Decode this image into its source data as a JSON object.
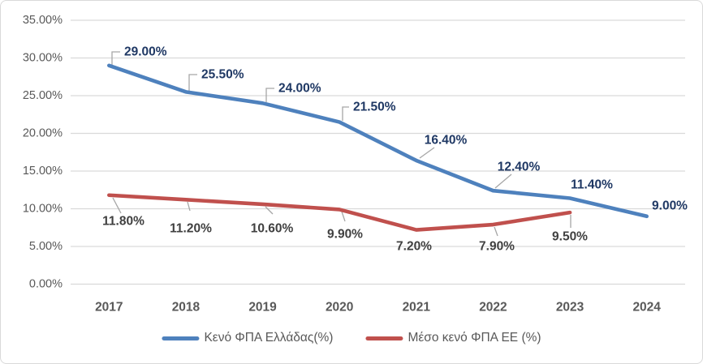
{
  "chart_data": {
    "type": "line",
    "title": "",
    "categories": [
      "2017",
      "2018",
      "2019",
      "2020",
      "2021",
      "2022",
      "2023",
      "2024"
    ],
    "series": [
      {
        "name": "Κενό ΦΠΑ Ελλάδας(%)",
        "color": "#4E81BD",
        "label_color": "#1F3864",
        "values": [
          29.0,
          25.5,
          24.0,
          21.5,
          16.4,
          12.4,
          11.4,
          9.0
        ],
        "data_labels": [
          "29.00%",
          "25.50%",
          "24.00%",
          "21.50%",
          "16.40%",
          "12.40%",
          "11.40%",
          "9.00%"
        ]
      },
      {
        "name": "Μέσο κενό ΦΠΑ ΕΕ (%)",
        "color": "#C0504D",
        "label_color": "#404040",
        "values": [
          11.8,
          11.2,
          10.6,
          9.9,
          7.2,
          7.9,
          9.5
        ],
        "data_labels": [
          "11.80%",
          "11.20%",
          "10.60%",
          "9.90%",
          "7.20%",
          "7.90%",
          "9.50%"
        ]
      }
    ],
    "y_axis": {
      "min": 0,
      "max": 35,
      "step": 5,
      "tick_labels": [
        "0.00%",
        "5.00%",
        "10.00%",
        "15.00%",
        "20.00%",
        "25.00%",
        "30.00%",
        "35.00%"
      ]
    },
    "x_axis": {
      "tick_labels": [
        "2017",
        "2018",
        "2019",
        "2020",
        "2021",
        "2022",
        "2023",
        "2024"
      ]
    },
    "legend": {
      "position": "bottom"
    },
    "grid": true
  },
  "colors": {
    "gridline": "#D9D9D9",
    "axis_text": "#595959",
    "leader_line": "#A6A6A6",
    "background": "#FFFFFF",
    "border": "#D9D9D9"
  }
}
